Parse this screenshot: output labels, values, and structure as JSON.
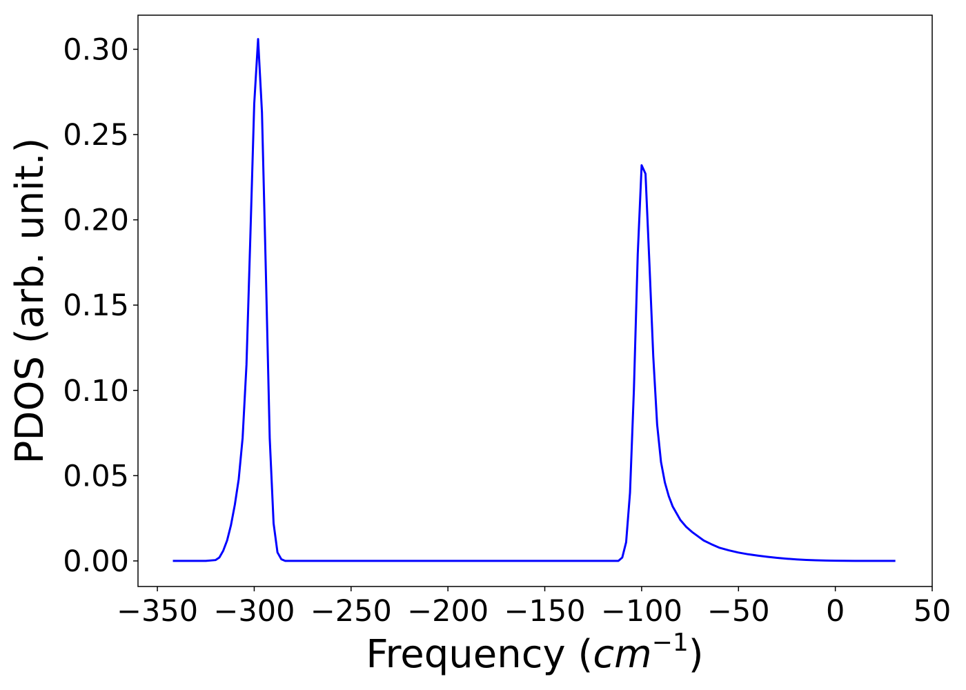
{
  "chart_data": {
    "type": "line",
    "title": "",
    "xlabel": "Frequency",
    "xlabel_unit": {
      "open": " (",
      "base": "cm",
      "exponent": "−1",
      "close": ")"
    },
    "ylabel": "PDOS (arb. unit.)",
    "xlim": [
      -360,
      50
    ],
    "ylim": [
      -0.015,
      0.32
    ],
    "grid": false,
    "legend": "none",
    "line_color": "#0000ff",
    "x_ticks": [
      {
        "value": -350,
        "label": "−350"
      },
      {
        "value": -300,
        "label": "−300"
      },
      {
        "value": -250,
        "label": "−250"
      },
      {
        "value": -200,
        "label": "−200"
      },
      {
        "value": -150,
        "label": "−150"
      },
      {
        "value": -100,
        "label": "−100"
      },
      {
        "value": -50,
        "label": "−50"
      },
      {
        "value": 0,
        "label": "0"
      },
      {
        "value": 50,
        "label": "50"
      }
    ],
    "y_ticks": [
      {
        "value": 0.0,
        "label": "0.00"
      },
      {
        "value": 0.05,
        "label": "0.05"
      },
      {
        "value": 0.1,
        "label": "0.10"
      },
      {
        "value": 0.15,
        "label": "0.15"
      },
      {
        "value": 0.2,
        "label": "0.20"
      },
      {
        "value": 0.25,
        "label": "0.25"
      },
      {
        "value": 0.3,
        "label": "0.30"
      }
    ],
    "series": [
      {
        "x": [
          -342,
          -325,
          -320,
          -318,
          -316,
          -314,
          -312,
          -310,
          -308,
          -306,
          -304,
          -302,
          -300,
          -298,
          -296,
          -294,
          -292,
          -290,
          -288,
          -286,
          -284,
          -280,
          -250,
          -200,
          -150,
          -120,
          -112,
          -110,
          -108,
          -106,
          -104,
          -102,
          -100,
          -98,
          -96,
          -94,
          -92,
          -90,
          -88,
          -86,
          -84,
          -82,
          -80,
          -77,
          -74,
          -71,
          -68,
          -64,
          -60,
          -55,
          -50,
          -45,
          -40,
          -35,
          -30,
          -25,
          -20,
          -15,
          -10,
          -5,
          0,
          10,
          20,
          31
        ],
        "y": [
          0.0,
          0.0,
          0.0005,
          0.002,
          0.006,
          0.012,
          0.021,
          0.033,
          0.048,
          0.072,
          0.115,
          0.19,
          0.268,
          0.306,
          0.263,
          0.17,
          0.072,
          0.022,
          0.005,
          0.001,
          0.0,
          0.0,
          0.0,
          0.0,
          0.0,
          0.0,
          0.0,
          0.002,
          0.011,
          0.04,
          0.1,
          0.18,
          0.232,
          0.227,
          0.175,
          0.12,
          0.08,
          0.058,
          0.046,
          0.038,
          0.032,
          0.028,
          0.024,
          0.02,
          0.017,
          0.0145,
          0.012,
          0.0098,
          0.0078,
          0.0062,
          0.0049,
          0.0039,
          0.0031,
          0.0024,
          0.0018,
          0.0013,
          0.0009,
          0.0006,
          0.0004,
          0.0002,
          0.0001,
          0.0,
          0.0,
          0.0
        ]
      }
    ]
  }
}
